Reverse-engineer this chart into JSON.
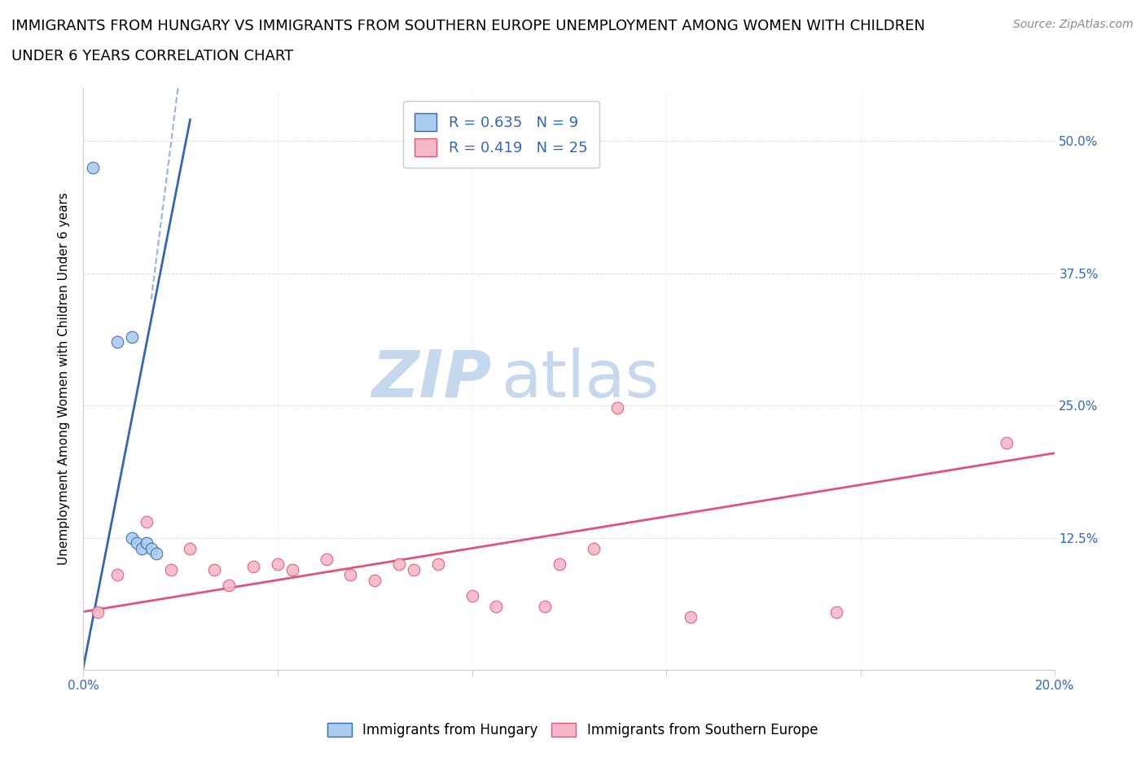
{
  "title_line1": "IMMIGRANTS FROM HUNGARY VS IMMIGRANTS FROM SOUTHERN EUROPE UNEMPLOYMENT AMONG WOMEN WITH CHILDREN",
  "title_line2": "UNDER 6 YEARS CORRELATION CHART",
  "source_text": "Source: ZipAtlas.com",
  "ylabel": "Unemployment Among Women with Children Under 6 years",
  "xlim": [
    0.0,
    0.2
  ],
  "ylim": [
    0.0,
    0.55
  ],
  "xticks": [
    0.0,
    0.04,
    0.08,
    0.12,
    0.16,
    0.2
  ],
  "ytick_positions": [
    0.0,
    0.125,
    0.25,
    0.375,
    0.5
  ],
  "yticklabels": [
    "",
    "12.5%",
    "25.0%",
    "37.5%",
    "50.0%"
  ],
  "hungary_color": "#aaccee",
  "hungary_color_line": "#3366bb",
  "southern_europe_color": "#f5b8c8",
  "southern_europe_color_line": "#dd5577",
  "watermark_zip_color": "#c5d8ee",
  "watermark_atlas_color": "#c5d8ee",
  "hungary_R": 0.635,
  "hungary_N": 9,
  "southern_europe_R": 0.419,
  "southern_europe_N": 25,
  "hungary_scatter_x": [
    0.002,
    0.007,
    0.01,
    0.01,
    0.011,
    0.012,
    0.013,
    0.014,
    0.015
  ],
  "hungary_scatter_y": [
    0.475,
    0.31,
    0.315,
    0.125,
    0.12,
    0.115,
    0.12,
    0.115,
    0.11
  ],
  "southern_scatter_x": [
    0.003,
    0.007,
    0.013,
    0.018,
    0.022,
    0.027,
    0.03,
    0.035,
    0.04,
    0.043,
    0.05,
    0.055,
    0.06,
    0.065,
    0.068,
    0.073,
    0.08,
    0.085,
    0.095,
    0.098,
    0.105,
    0.11,
    0.125,
    0.155,
    0.19
  ],
  "southern_scatter_y": [
    0.055,
    0.09,
    0.14,
    0.095,
    0.115,
    0.095,
    0.08,
    0.098,
    0.1,
    0.095,
    0.105,
    0.09,
    0.085,
    0.1,
    0.095,
    0.1,
    0.07,
    0.06,
    0.06,
    0.1,
    0.115,
    0.248,
    0.05,
    0.055,
    0.215
  ],
  "hungary_trendline_x": [
    0.0,
    0.022
  ],
  "hungary_trendline_y": [
    0.002,
    0.52
  ],
  "southern_trendline_x": [
    0.0,
    0.2
  ],
  "southern_trendline_y": [
    0.055,
    0.205
  ],
  "legend_label_hungary": "Immigrants from Hungary",
  "legend_label_southern": "Immigrants from Southern Europe",
  "bg_color": "#ffffff",
  "grid_color": "#cccccc",
  "title_fontsize": 13,
  "axis_label_fontsize": 11,
  "tick_fontsize": 11,
  "legend_fontsize": 12,
  "source_fontsize": 10,
  "marker_size": 110
}
